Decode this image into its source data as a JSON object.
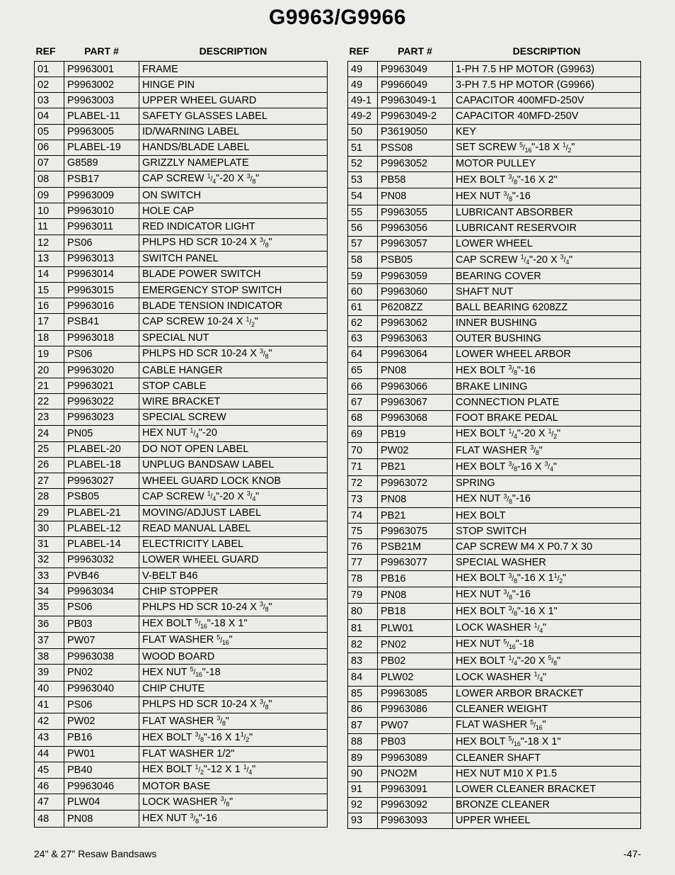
{
  "title": "G9963/G9966",
  "headers": {
    "ref": "REF",
    "part": "PART #",
    "desc": "DESCRIPTION"
  },
  "footer": {
    "left": "24\" & 27\" Resaw Bandsaws",
    "right": "-47-"
  },
  "left": [
    {
      "ref": "01",
      "part": "P9963001",
      "desc": "FRAME"
    },
    {
      "ref": "02",
      "part": "P9963002",
      "desc": "HINGE PIN"
    },
    {
      "ref": "03",
      "part": "P9963003",
      "desc": "UPPER WHEEL GUARD"
    },
    {
      "ref": "04",
      "part": "PLABEL-11",
      "desc": "SAFETY GLASSES LABEL"
    },
    {
      "ref": "05",
      "part": "P9963005",
      "desc": "ID/WARNING LABEL"
    },
    {
      "ref": "06",
      "part": "PLABEL-19",
      "desc": "HANDS/BLADE LABEL"
    },
    {
      "ref": "07",
      "part": "G8589",
      "desc": "GRIZZLY NAMEPLATE"
    },
    {
      "ref": "08",
      "part": "PSB17",
      "desc": "CAP SCREW {1/4}\"-20 X {3/8}\""
    },
    {
      "ref": "09",
      "part": "P9963009",
      "desc": "ON SWITCH"
    },
    {
      "ref": "10",
      "part": "P9963010",
      "desc": "HOLE CAP"
    },
    {
      "ref": "11",
      "part": "P9963011",
      "desc": "RED INDICATOR LIGHT"
    },
    {
      "ref": "12",
      "part": "PS06",
      "desc": "PHLPS HD SCR 10-24 X {3/8}\""
    },
    {
      "ref": "13",
      "part": "P9963013",
      "desc": "SWITCH PANEL"
    },
    {
      "ref": "14",
      "part": "P9963014",
      "desc": "BLADE POWER SWITCH"
    },
    {
      "ref": "15",
      "part": "P9963015",
      "desc": "EMERGENCY STOP SWITCH"
    },
    {
      "ref": "16",
      "part": "P9963016",
      "desc": "BLADE TENSION INDICATOR"
    },
    {
      "ref": "17",
      "part": "PSB41",
      "desc": "CAP SCREW 10-24 X {1/2}\""
    },
    {
      "ref": "18",
      "part": "P9963018",
      "desc": "SPECIAL NUT"
    },
    {
      "ref": "19",
      "part": "PS06",
      "desc": "PHLPS HD SCR 10-24 X {3/8}\""
    },
    {
      "ref": "20",
      "part": "P9963020",
      "desc": "CABLE HANGER"
    },
    {
      "ref": "21",
      "part": "P9963021",
      "desc": "STOP CABLE"
    },
    {
      "ref": "22",
      "part": "P9963022",
      "desc": "WIRE BRACKET"
    },
    {
      "ref": "23",
      "part": "P9963023",
      "desc": "SPECIAL SCREW"
    },
    {
      "ref": "24",
      "part": "PN05",
      "desc": "HEX NUT {1/4}\"-20"
    },
    {
      "ref": "25",
      "part": "PLABEL-20",
      "desc": "DO NOT OPEN LABEL"
    },
    {
      "ref": "26",
      "part": "PLABEL-18",
      "desc": "UNPLUG BANDSAW LABEL"
    },
    {
      "ref": "27",
      "part": "P9963027",
      "desc": "WHEEL GUARD LOCK KNOB"
    },
    {
      "ref": "28",
      "part": "PSB05",
      "desc": "CAP SCREW {1/4}\"-20 X {3/4}\""
    },
    {
      "ref": "29",
      "part": "PLABEL-21",
      "desc": "MOVING/ADJUST LABEL"
    },
    {
      "ref": "30",
      "part": "PLABEL-12",
      "desc": "READ MANUAL LABEL"
    },
    {
      "ref": "31",
      "part": "PLABEL-14",
      "desc": "ELECTRICITY LABEL"
    },
    {
      "ref": "32",
      "part": "P9963032",
      "desc": "LOWER WHEEL GUARD"
    },
    {
      "ref": "33",
      "part": "PVB46",
      "desc": "V-BELT B46"
    },
    {
      "ref": "34",
      "part": "P9963034",
      "desc": "CHIP STOPPER"
    },
    {
      "ref": "35",
      "part": "PS06",
      "desc": "PHLPS HD SCR 10-24 X {3/8}\""
    },
    {
      "ref": "36",
      "part": "PB03",
      "desc": "HEX BOLT {5/16}\"-18 X 1\""
    },
    {
      "ref": "37",
      "part": "PW07",
      "desc": "FLAT WASHER {5/16}\""
    },
    {
      "ref": "38",
      "part": "P9963038",
      "desc": "WOOD BOARD"
    },
    {
      "ref": "39",
      "part": "PN02",
      "desc": "HEX NUT {5/16}\"-18"
    },
    {
      "ref": "40",
      "part": "P9963040",
      "desc": "CHIP CHUTE"
    },
    {
      "ref": "41",
      "part": "PS06",
      "desc": "PHLPS HD SCR 10-24 X {3/8}\""
    },
    {
      "ref": "42",
      "part": "PW02",
      "desc": "FLAT WASHER {3/8}\""
    },
    {
      "ref": "43",
      "part": "PB16",
      "desc": "HEX BOLT {3/8}\"-16 X 1{1/2}\""
    },
    {
      "ref": "44",
      "part": "PW01",
      "desc": "FLAT WASHER 1/2\""
    },
    {
      "ref": "45",
      "part": "PB40",
      "desc": "HEX BOLT {1/2}\"-12 X 1 {1/4}\""
    },
    {
      "ref": "46",
      "part": "P9963046",
      "desc": "MOTOR BASE"
    },
    {
      "ref": "47",
      "part": "PLW04",
      "desc": "LOCK WASHER {3/8}\""
    },
    {
      "ref": "48",
      "part": "PN08",
      "desc": "HEX NUT {3/8}\"-16"
    }
  ],
  "right": [
    {
      "ref": "49",
      "part": "P9963049",
      "desc": "1-PH 7.5 HP MOTOR (G9963)"
    },
    {
      "ref": "49",
      "part": "P9966049",
      "desc": "3-PH 7.5 HP MOTOR (G9966)"
    },
    {
      "ref": "49-1",
      "part": "P9963049-1",
      "desc": "CAPACITOR 400MFD-250V"
    },
    {
      "ref": "49-2",
      "part": "P9963049-2",
      "desc": "CAPACITOR 40MFD-250V"
    },
    {
      "ref": "50",
      "part": "P3619050",
      "desc": "KEY"
    },
    {
      "ref": "51",
      "part": "PSS08",
      "desc": "SET SCREW {5/16}\"-18 X {1/2}\""
    },
    {
      "ref": "52",
      "part": "P9963052",
      "desc": "MOTOR PULLEY"
    },
    {
      "ref": "53",
      "part": "PB58",
      "desc": "HEX BOLT {3/8}\"-16 X 2\""
    },
    {
      "ref": "54",
      "part": "PN08",
      "desc": "HEX NUT {3/8}\"-16"
    },
    {
      "ref": "55",
      "part": "P9963055",
      "desc": "LUBRICANT ABSORBER"
    },
    {
      "ref": "56",
      "part": "P9963056",
      "desc": "LUBRICANT RESERVOIR"
    },
    {
      "ref": "57",
      "part": "P9963057",
      "desc": "LOWER WHEEL"
    },
    {
      "ref": "58",
      "part": "PSB05",
      "desc": "CAP SCREW {1/4}\"-20 X {3/4}\""
    },
    {
      "ref": "59",
      "part": "P9963059",
      "desc": "BEARING COVER"
    },
    {
      "ref": "60",
      "part": "P9963060",
      "desc": "SHAFT NUT"
    },
    {
      "ref": "61",
      "part": "P6208ZZ",
      "desc": "BALL BEARING 6208ZZ"
    },
    {
      "ref": "62",
      "part": "P9963062",
      "desc": "INNER BUSHING"
    },
    {
      "ref": "63",
      "part": "P9963063",
      "desc": "OUTER BUSHING"
    },
    {
      "ref": "64",
      "part": "P9963064",
      "desc": "LOWER WHEEL ARBOR"
    },
    {
      "ref": "65",
      "part": "PN08",
      "desc": "HEX BOLT {3/8}\"-16"
    },
    {
      "ref": "66",
      "part": "P9963066",
      "desc": "BRAKE LINING"
    },
    {
      "ref": "67",
      "part": "P9963067",
      "desc": "CONNECTION PLATE"
    },
    {
      "ref": "68",
      "part": "P9963068",
      "desc": "FOOT BRAKE PEDAL"
    },
    {
      "ref": "69",
      "part": "PB19",
      "desc": "HEX BOLT {1/4}\"-20 X {1/2}\""
    },
    {
      "ref": "70",
      "part": "PW02",
      "desc": "FLAT WASHER {3/8}\""
    },
    {
      "ref": "71",
      "part": "PB21",
      "desc": "HEX BOLT {3/8}-16 X {3/4}\""
    },
    {
      "ref": "72",
      "part": "P9963072",
      "desc": "SPRING"
    },
    {
      "ref": "73",
      "part": "PN08",
      "desc": "HEX NUT {3/8}\"-16"
    },
    {
      "ref": "74",
      "part": "PB21",
      "desc": "HEX BOLT"
    },
    {
      "ref": "75",
      "part": "P9963075",
      "desc": "STOP SWITCH"
    },
    {
      "ref": "76",
      "part": "PSB21M",
      "desc": "CAP SCREW M4 X P0.7 X 30"
    },
    {
      "ref": "77",
      "part": "P9963077",
      "desc": "SPECIAL WASHER"
    },
    {
      "ref": "78",
      "part": "PB16",
      "desc": "HEX BOLT {3/8}\"-16 X 1{1/2}\""
    },
    {
      "ref": "79",
      "part": "PN08",
      "desc": "HEX NUT {3/8}\"-16"
    },
    {
      "ref": "80",
      "part": "PB18",
      "desc": "HEX BOLT {3/8}\"-16 X 1\""
    },
    {
      "ref": "81",
      "part": "PLW01",
      "desc": "LOCK WASHER {1/4}\""
    },
    {
      "ref": "82",
      "part": "PN02",
      "desc": "HEX NUT {5/16}\"-18"
    },
    {
      "ref": "83",
      "part": "PB02",
      "desc": "HEX BOLT {1/4}\"-20 X {5/8}\""
    },
    {
      "ref": "84",
      "part": "PLW02",
      "desc": "LOCK WASHER {1/4}\""
    },
    {
      "ref": "85",
      "part": "P9963085",
      "desc": "LOWER ARBOR BRACKET"
    },
    {
      "ref": "86",
      "part": "P9963086",
      "desc": "CLEANER WEIGHT"
    },
    {
      "ref": "87",
      "part": "PW07",
      "desc": "FLAT WASHER {5/16}\""
    },
    {
      "ref": "88",
      "part": "PB03",
      "desc": "HEX BOLT {5/16}\"-18 X 1\""
    },
    {
      "ref": "89",
      "part": "P9963089",
      "desc": "CLEANER SHAFT"
    },
    {
      "ref": "90",
      "part": "PNO2M",
      "desc": "HEX NUT M10 X P1.5"
    },
    {
      "ref": "91",
      "part": "P9963091",
      "desc": "LOWER CLEANER BRACKET"
    },
    {
      "ref": "92",
      "part": "P9963092",
      "desc": "BRONZE CLEANER"
    },
    {
      "ref": "93",
      "part": "P9963093",
      "desc": "UPPER WHEEL"
    }
  ]
}
